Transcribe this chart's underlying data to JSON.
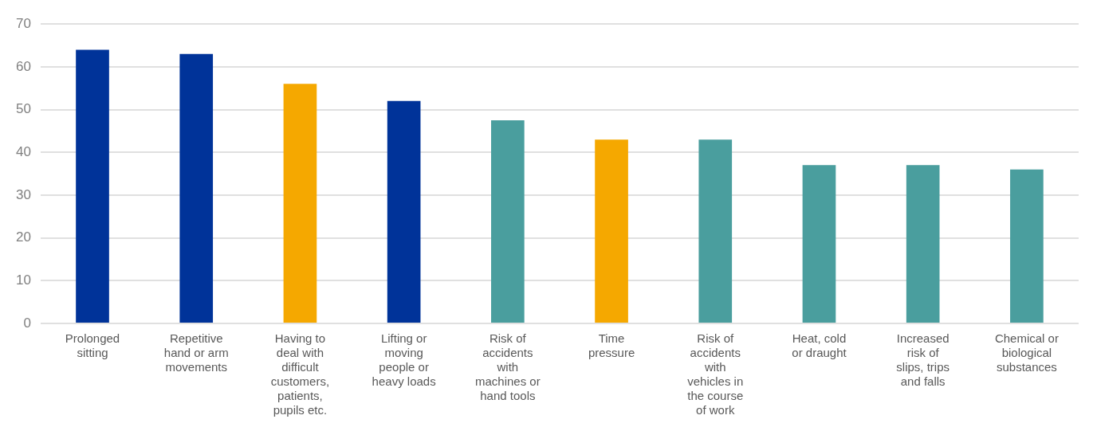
{
  "chart_data": {
    "type": "bar",
    "categories": [
      "Prolonged sitting",
      "Repetitive hand or arm movements",
      "Having to deal with difficult customers, patients, pupils etc.",
      "Lifting or moving people or heavy loads",
      "Risk of accidents with machines or hand tools",
      "Time pressure",
      "Risk of accidents with vehicles in the course of work",
      "Heat, cold or draught",
      "Increased risk of slips, trips and falls",
      "Chemical or biological substances"
    ],
    "values": [
      64,
      63,
      56,
      52,
      47.5,
      43,
      43,
      37,
      37,
      36
    ],
    "colors": [
      "#003399",
      "#003399",
      "#f5a800",
      "#003399",
      "#4a9e9e",
      "#f5a800",
      "#4a9e9e",
      "#4a9e9e",
      "#4a9e9e",
      "#4a9e9e"
    ],
    "ylim": [
      0,
      70
    ],
    "yticks": [
      0,
      10,
      20,
      30,
      40,
      50,
      60,
      70
    ],
    "grid": "y",
    "legend": false
  }
}
